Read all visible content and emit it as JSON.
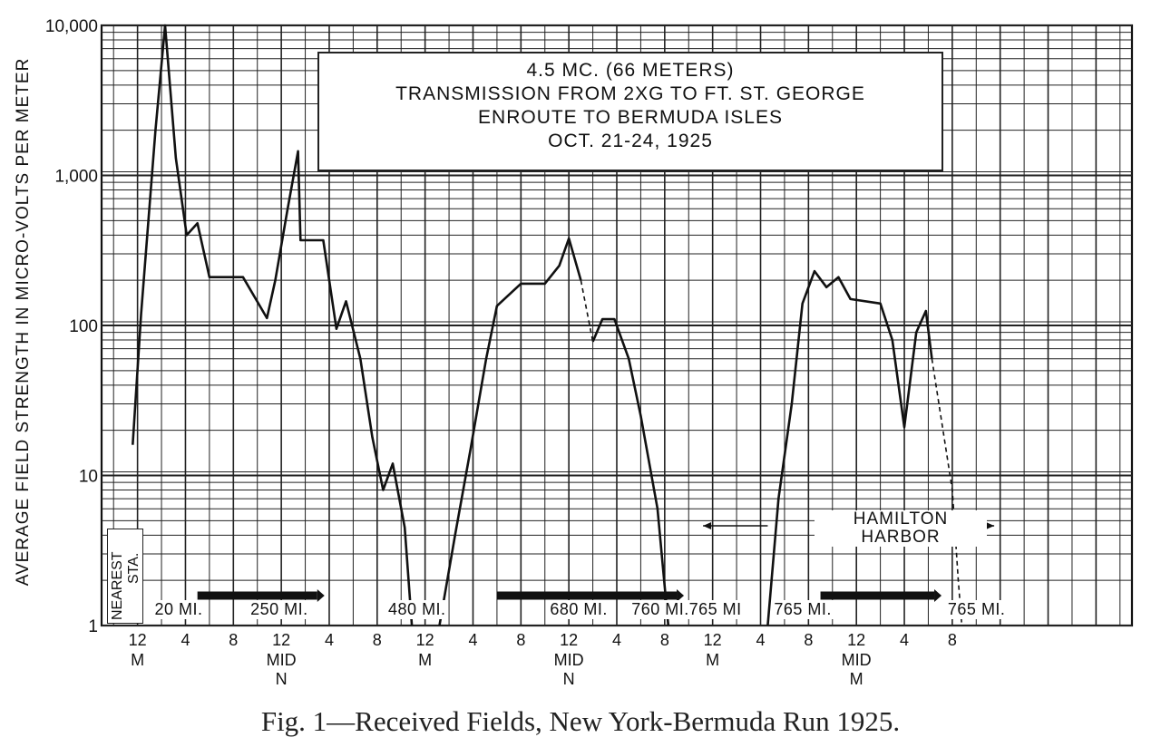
{
  "chart_data": {
    "type": "line",
    "title_lines": [
      "4.5 MC. (66 METERS)",
      "TRANSMISSION  FROM  2XG  TO FT. ST. GEORGE",
      "ENROUTE TO BERMUDA ISLES",
      "OCT. 21-24, 1925"
    ],
    "ylabel": "AVERAGE FIELD STRENGTH IN MICRO-VOLTS PER METER",
    "yscale": "log",
    "ylim": [
      1,
      10000
    ],
    "yticks": [
      {
        "value": 1,
        "label": "1"
      },
      {
        "value": 10,
        "label": "10"
      },
      {
        "value": 100,
        "label": "100"
      },
      {
        "value": 1000,
        "label": "1,000"
      },
      {
        "value": 10000,
        "label": "10,000"
      }
    ],
    "xlabel_unit": "hours",
    "xlim": [
      -3,
      83
    ],
    "xticks": [
      {
        "x": 0,
        "top": "12",
        "bottom": [
          "M"
        ]
      },
      {
        "x": 4,
        "top": "4",
        "bottom": []
      },
      {
        "x": 8,
        "top": "8",
        "bottom": []
      },
      {
        "x": 12,
        "top": "12",
        "bottom": [
          "MID",
          "N"
        ]
      },
      {
        "x": 16,
        "top": "4",
        "bottom": []
      },
      {
        "x": 20,
        "top": "8",
        "bottom": []
      },
      {
        "x": 24,
        "top": "12",
        "bottom": [
          "M"
        ]
      },
      {
        "x": 28,
        "top": "4",
        "bottom": []
      },
      {
        "x": 32,
        "top": "8",
        "bottom": []
      },
      {
        "x": 36,
        "top": "12",
        "bottom": [
          "MID",
          "N"
        ]
      },
      {
        "x": 40,
        "top": "4",
        "bottom": []
      },
      {
        "x": 44,
        "top": "8",
        "bottom": []
      },
      {
        "x": 48,
        "top": "12",
        "bottom": [
          "M"
        ]
      },
      {
        "x": 52,
        "top": "4",
        "bottom": []
      },
      {
        "x": 56,
        "top": "8",
        "bottom": []
      },
      {
        "x": 60,
        "top": "12",
        "bottom": [
          "MID",
          "M"
        ]
      },
      {
        "x": 64,
        "top": "4",
        "bottom": []
      },
      {
        "x": 68,
        "top": "8",
        "bottom": []
      }
    ],
    "grid": true,
    "series": [
      {
        "style": "solid",
        "points": [
          [
            -0.4,
            16
          ],
          [
            0.3,
            120
          ],
          [
            1.5,
            2000
          ],
          [
            2.3,
            10000
          ],
          [
            3.2,
            1300
          ],
          [
            4.1,
            400
          ],
          [
            5.0,
            480
          ],
          [
            6.0,
            210
          ],
          [
            8.8,
            210
          ],
          [
            10.8,
            112
          ],
          [
            11.5,
            200
          ],
          [
            12.5,
            580
          ],
          [
            13.4,
            1450
          ],
          [
            13.6,
            370
          ],
          [
            15.5,
            370
          ],
          [
            16.6,
            95
          ],
          [
            17.4,
            145
          ],
          [
            18.6,
            60
          ],
          [
            19.6,
            18
          ],
          [
            20.5,
            8
          ],
          [
            21.3,
            12
          ],
          [
            22.3,
            4.5
          ],
          [
            22.9,
            1
          ]
        ]
      },
      {
        "style": "solid",
        "points": [
          [
            25.2,
            1
          ],
          [
            26.5,
            4
          ],
          [
            27.8,
            15
          ],
          [
            29.1,
            60
          ],
          [
            30.0,
            135
          ],
          [
            32.0,
            190
          ],
          [
            34.0,
            190
          ],
          [
            35.2,
            250
          ],
          [
            36.0,
            380
          ],
          [
            37.0,
            200
          ]
        ]
      },
      {
        "style": "dashed",
        "points": [
          [
            37.0,
            200
          ],
          [
            38.0,
            78
          ]
        ]
      },
      {
        "style": "solid",
        "points": [
          [
            38.0,
            78
          ],
          [
            38.8,
            110
          ],
          [
            39.8,
            110
          ],
          [
            41.0,
            60
          ],
          [
            42.0,
            25
          ],
          [
            43.4,
            6
          ],
          [
            44.3,
            1
          ]
        ]
      },
      {
        "style": "solid",
        "points": [
          [
            52.6,
            1
          ],
          [
            53.5,
            7
          ],
          [
            54.6,
            30
          ],
          [
            55.5,
            140
          ],
          [
            56.5,
            230
          ],
          [
            57.5,
            180
          ],
          [
            58.5,
            210
          ],
          [
            59.5,
            150
          ],
          [
            62.0,
            140
          ],
          [
            63.0,
            80
          ],
          [
            64.0,
            21
          ],
          [
            65.0,
            90
          ],
          [
            65.8,
            125
          ],
          [
            66.3,
            60
          ]
        ]
      },
      {
        "style": "dashed",
        "points": [
          [
            66.3,
            60
          ],
          [
            68.0,
            8
          ],
          [
            68.5,
            2
          ],
          [
            68.8,
            1
          ]
        ]
      }
    ],
    "distance_labels": [
      {
        "text": "20 MI.",
        "x": 4.0
      },
      {
        "text": "250 MI.",
        "x": 12.0
      },
      {
        "text": "480 MI.",
        "x": 23.5
      },
      {
        "text": "680 MI.",
        "x": 37.0
      },
      {
        "text": "760 MI.",
        "x": 43.8
      },
      {
        "text": "765 MI",
        "x": 48.6
      },
      {
        "text": "765 MI.",
        "x": 55.7
      },
      {
        "text": "765 MI.",
        "x": 70.2
      }
    ],
    "nearest_station_label": [
      "NEAREST",
      "STA."
    ],
    "harbor_label": [
      "HAMILTON",
      "HARBOR"
    ]
  },
  "caption": "Fig. 1—Received Fields, New York-Bermuda Run 1925."
}
